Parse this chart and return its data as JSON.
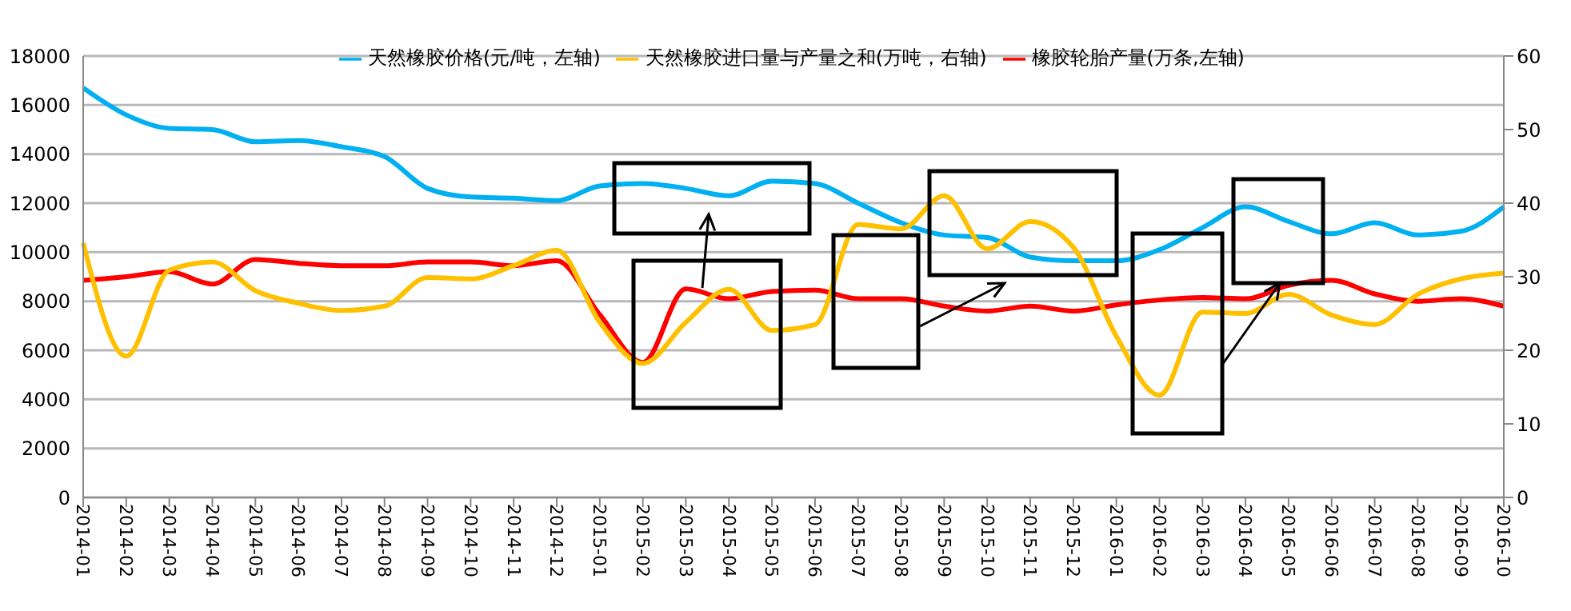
{
  "chart_data": {
    "type": "line",
    "categories": [
      "2014-01",
      "2014-02",
      "2014-03",
      "2014-04",
      "2014-05",
      "2014-06",
      "2014-07",
      "2014-08",
      "2014-09",
      "2014-10",
      "2014-11",
      "2014-12",
      "2015-01",
      "2015-02",
      "2015-03",
      "2015-04",
      "2015-05",
      "2015-06",
      "2015-07",
      "2015-08",
      "2015-09",
      "2015-10",
      "2015-11",
      "2015-12",
      "2016-01",
      "2016-02",
      "2016-03",
      "2016-04",
      "2016-05",
      "2016-06",
      "2016-07",
      "2016-08",
      "2016-09",
      "2016-10"
    ],
    "series": [
      {
        "name": "橡胶轮胎产量(万条,左轴)",
        "color": "#ff0000",
        "values": [
          8850,
          9000,
          9200,
          8700,
          9700,
          9550,
          9450,
          9450,
          9600,
          9600,
          9450,
          9650,
          7450,
          5500,
          8500,
          8100,
          8400,
          8450,
          8100,
          8100,
          7800,
          7600,
          7800,
          7600,
          7850,
          8050,
          8150,
          8100,
          8650,
          8850,
          8300,
          8000,
          8100,
          7800
        ]
      },
      {
        "name": "天然橡胶价格(元/吨，左轴)",
        "color": "#00b0f0",
        "values": [
          16700,
          15600,
          15050,
          15000,
          14500,
          14550,
          14300,
          13900,
          12600,
          12250,
          12200,
          12100,
          12700,
          12800,
          12600,
          12300,
          12900,
          12800,
          12000,
          11200,
          10700,
          10600,
          9800,
          9650,
          9650,
          10100,
          11000,
          11850,
          11250,
          10750,
          11200,
          10700,
          10850,
          11850
        ]
      },
      {
        "name": "天然橡胶进口量与产量之和(万吨，右轴)",
        "color": "#ffc000",
        "axis": "y2",
        "values": [
          34.6,
          19.2,
          30.9,
          32.0,
          28.1,
          26.4,
          25.4,
          26.0,
          29.9,
          29.7,
          31.5,
          33.6,
          23.8,
          18.2,
          23.8,
          28.3,
          22.7,
          23.5,
          37.1,
          36.5,
          41.0,
          33.8,
          37.5,
          34.0,
          21.9,
          13.9,
          25.2,
          25.0,
          27.6,
          24.8,
          23.5,
          27.6,
          29.7,
          30.5
        ]
      }
    ],
    "ylim": [
      0,
      18000
    ],
    "yticks": [
      0,
      2000,
      4000,
      6000,
      8000,
      10000,
      12000,
      14000,
      16000,
      18000
    ],
    "y2lim": [
      0,
      60
    ],
    "y2ticks": [
      0,
      10,
      20,
      30,
      40,
      50,
      60
    ],
    "grid": "y",
    "legend": "top",
    "marker": "none",
    "line_style": "solid"
  }
}
